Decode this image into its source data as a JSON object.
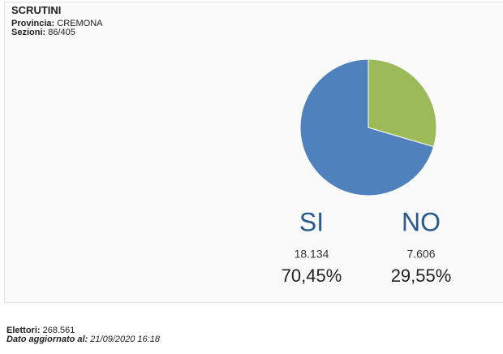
{
  "header": {
    "title": "SCRUTINI",
    "provincia_label": "Provincia:",
    "provincia": "CREMONA",
    "sezioni_label": "Sezioni:",
    "sezioni": "86/405"
  },
  "chart_data": {
    "type": "pie",
    "categories": [
      "SI",
      "NO"
    ],
    "values": [
      70.45,
      29.55
    ],
    "value_labels": [
      "70,45%",
      "29,55%"
    ],
    "colors": [
      "#4f81bd",
      "#9bbb59"
    ],
    "counts": [
      {
        "value": 18134,
        "label": "18.134"
      },
      {
        "value": 7606,
        "label": "7.606"
      }
    ]
  },
  "footer": {
    "elettori_label": "Elettori:",
    "elettori": "268.561",
    "aggiornato_label": "Dato aggiornato al:",
    "aggiornato": "21/09/2020 16:18"
  }
}
